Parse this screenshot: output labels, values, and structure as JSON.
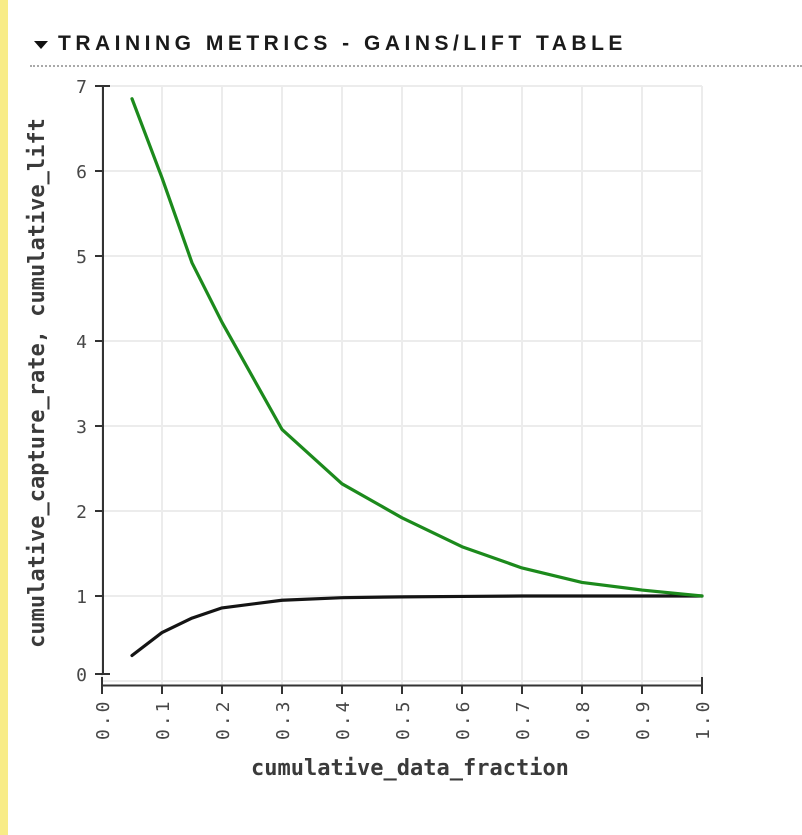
{
  "page": {
    "accent_strip_color": "#f8ec87",
    "background_color": "#ffffff"
  },
  "header": {
    "icon": "triangle-down",
    "title": "TRAINING METRICS - GAINS/LIFT TABLE"
  },
  "chart_data": {
    "type": "line",
    "title": "",
    "xlabel": "cumulative_data_fraction",
    "ylabel": "cumulative_capture_rate, cumulative_lift",
    "xlim": [
      0.0,
      1.0
    ],
    "ylim": [
      0,
      7
    ],
    "x_ticks": [
      "0.0",
      "0.1",
      "0.2",
      "0.3",
      "0.4",
      "0.5",
      "0.6",
      "0.7",
      "0.8",
      "0.9",
      "1.0"
    ],
    "y_ticks": [
      "0",
      "1",
      "2",
      "3",
      "4",
      "5",
      "6",
      "7"
    ],
    "grid": true,
    "legend": "none",
    "x": [
      0.05,
      0.1,
      0.15,
      0.2,
      0.3,
      0.4,
      0.5,
      0.6,
      0.7,
      0.8,
      0.9,
      1.0
    ],
    "series": [
      {
        "name": "cumulative_capture_rate",
        "color": "#141414",
        "values": [
          0.3,
          0.57,
          0.74,
          0.86,
          0.95,
          0.98,
          0.99,
          0.995,
          1.0,
          1.0,
          1.0,
          1.0
        ]
      },
      {
        "name": "cumulative_lift",
        "color": "#1c8a1c",
        "values": [
          6.85,
          5.92,
          4.92,
          4.22,
          2.96,
          2.32,
          1.92,
          1.58,
          1.33,
          1.16,
          1.07,
          1.0
        ]
      }
    ],
    "grid_color": "#ececec",
    "axis_color": "#333333",
    "tick_label_color": "#474747"
  }
}
